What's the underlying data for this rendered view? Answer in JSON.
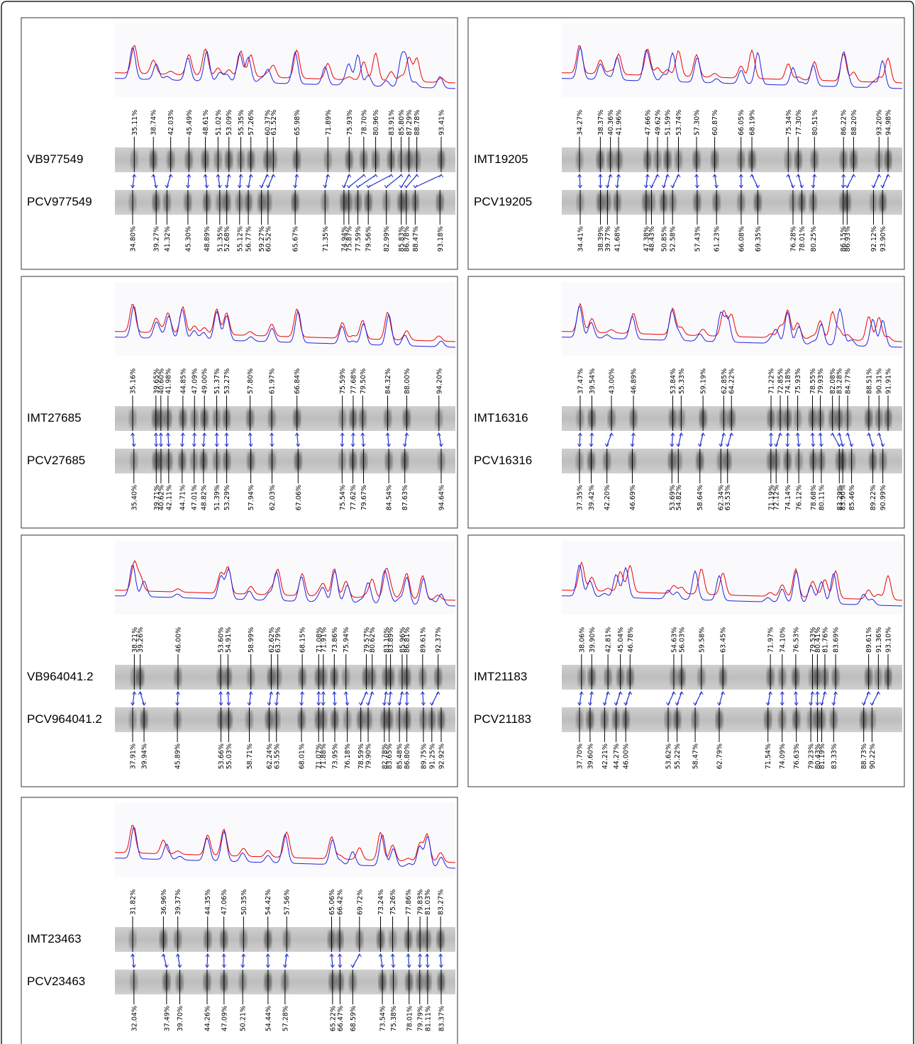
{
  "panels": [
    {
      "lanes": [
        "VB977549",
        "PCV977549"
      ],
      "top_labels": [
        "35.11%",
        "38.74%",
        "42.03%",
        "45.49%",
        "48.61%",
        "51.02%",
        "53.09%",
        "55.35%",
        "57.26%",
        "60.37%",
        "61.52%",
        "65.98%",
        "71.89%",
        "75.93%",
        "78.70%",
        "80.96%",
        "83.91%",
        "85.80%",
        "87.29%",
        "88.78%",
        "93.41%"
      ],
      "bottom_labels": [
        "34.80%",
        "39.27%",
        "41.32%",
        "45.30%",
        "48.89%",
        "51.35%",
        "52.68%",
        "55.12%",
        "56.77%",
        "59.27%",
        "60.52%",
        "65.67%",
        "71.35%",
        "74.94%",
        "75.87%",
        "77.59%",
        "79.56%",
        "82.99%",
        "85.83%",
        "86.78%",
        "88.47%",
        "93.18%"
      ]
    },
    {
      "lanes": [
        "IMT19205",
        "PCV19205"
      ],
      "top_labels": [
        "34.27%",
        "38.37%",
        "40.36%",
        "41.96%",
        "47.66%",
        "49.62%",
        "51.59%",
        "53.74%",
        "57.30%",
        "60.87%",
        "66.05%",
        "68.19%",
        "75.34%",
        "77.30%",
        "80.51%",
        "86.22%",
        "88.20%",
        "93.20%",
        "94.98%"
      ],
      "bottom_labels": [
        "34.41%",
        "38.39%",
        "39.77%",
        "41.68%",
        "47.38%",
        "48.43%",
        "50.85%",
        "52.58%",
        "57.43%",
        "61.23%",
        "66.08%",
        "69.35%",
        "76.28%",
        "78.01%",
        "80.25%",
        "86.15%",
        "86.93%",
        "92.12%",
        "93.90%"
      ]
    },
    {
      "lanes": [
        "IMT27685",
        "PCV27685"
      ],
      "top_labels": [
        "35.16%",
        "39.65%",
        "40.60%",
        "41.98%",
        "44.85%",
        "47.09%",
        "49.00%",
        "51.37%",
        "53.27%",
        "57.80%",
        "61.97%",
        "66.84%",
        "75.59%",
        "77.68%",
        "79.50%",
        "84.32%",
        "88.00%",
        "94.20%"
      ],
      "bottom_labels": [
        "35.40%",
        "39.71%",
        "40.62%",
        "42.11%",
        "44.71%",
        "47.01%",
        "48.82%",
        "51.39%",
        "53.29%",
        "57.94%",
        "62.03%",
        "67.06%",
        "75.54%",
        "77.62%",
        "79.67%",
        "84.54%",
        "87.63%",
        "94.64%"
      ]
    },
    {
      "lanes": [
        "IMT16316",
        "PCV16316"
      ],
      "top_labels": [
        "37.47%",
        "39.54%",
        "43.00%",
        "46.89%",
        "53.84%",
        "55.33%",
        "59.19%",
        "62.85%",
        "64.22%",
        "71.22%",
        "72.85%",
        "74.18%",
        "75.93%",
        "78.55%",
        "79.93%",
        "82.08%",
        "83.28%",
        "84.77%",
        "88.51%",
        "90.31%",
        "91.91%"
      ],
      "bottom_labels": [
        "37.35%",
        "39.42%",
        "42.20%",
        "46.69%",
        "53.69%",
        "54.82%",
        "58.64%",
        "62.34%",
        "63.53%",
        "71.19%",
        "72.12%",
        "74.14%",
        "76.12%",
        "78.68%",
        "80.11%",
        "83.29%",
        "83.90%",
        "85.46%",
        "89.22%",
        "90.99%"
      ]
    },
    {
      "lanes": [
        "VB964041.2",
        "PCV964041.2"
      ],
      "top_labels": [
        "38.21%",
        "39.26%",
        "46.00%",
        "53.60%",
        "54.91%",
        "58.99%",
        "62.62%",
        "63.79%",
        "68.15%",
        "71.08%",
        "71.91%",
        "73.86%",
        "75.94%",
        "79.57%",
        "80.62%",
        "83.10%",
        "83.89%",
        "85.96%",
        "86.81%",
        "89.61%",
        "92.37%"
      ],
      "bottom_labels": [
        "37.91%",
        "39.94%",
        "45.89%",
        "53.66%",
        "55.03%",
        "58.71%",
        "62.24%",
        "63.55%",
        "68.01%",
        "71.07%",
        "71.88%",
        "73.95%",
        "76.18%",
        "78.59%",
        "79.90%",
        "82.78%",
        "83.65%",
        "85.48%",
        "86.80%",
        "89.75%",
        "91.25%",
        "92.92%"
      ]
    },
    {
      "lanes": [
        "IMT21183",
        "PCV21183"
      ],
      "top_labels": [
        "38.06%",
        "39.90%",
        "42.81%",
        "45.04%",
        "46.78%",
        "54.63%",
        "56.03%",
        "59.58%",
        "63.45%",
        "71.97%",
        "74.10%",
        "76.53%",
        "79.53%",
        "80.41%",
        "81.76%",
        "83.69%",
        "89.61%",
        "91.36%",
        "93.10%"
      ],
      "bottom_labels": [
        "37.70%",
        "39.60%",
        "42.21%",
        "44.27%",
        "46.00%",
        "53.62%",
        "55.22%",
        "58.47%",
        "62.79%",
        "71.54%",
        "74.09%",
        "76.63%",
        "79.23%",
        "80.43%",
        "81.19%",
        "83.33%",
        "88.73%",
        "90.22%"
      ]
    },
    {
      "lanes": [
        "IMT23463",
        "PCV23463"
      ],
      "top_labels": [
        "31.82%",
        "36.96%",
        "39.37%",
        "44.35%",
        "47.06%",
        "50.35%",
        "54.42%",
        "57.56%",
        "65.06%",
        "66.42%",
        "69.72%",
        "73.24%",
        "75.26%",
        "77.86%",
        "79.83%",
        "81.03%",
        "83.27%"
      ],
      "bottom_labels": [
        "32.04%",
        "37.49%",
        "39.70%",
        "44.26%",
        "47.09%",
        "50.21%",
        "54.44%",
        "57.28%",
        "65.22%",
        "66.47%",
        "68.59%",
        "73.54%",
        "75.38%",
        "78.01%",
        "79.79%",
        "81.11%",
        "83.37%"
      ]
    }
  ]
}
